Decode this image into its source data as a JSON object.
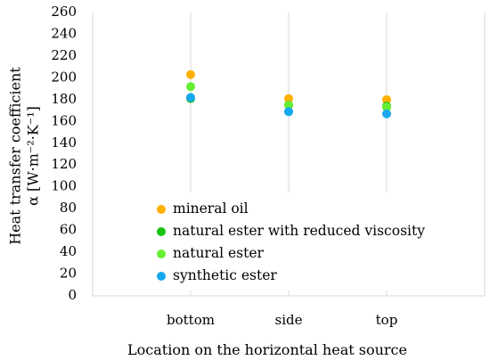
{
  "chart_data": {
    "type": "scatter",
    "categories": [
      "bottom",
      "side",
      "top"
    ],
    "xlabel": "Location on the horizontal heat source",
    "ylabel_line1": "Heat transfer coefficient",
    "ylabel_line2": "α [W·m⁻²·K⁻¹]",
    "ylim": [
      0,
      260
    ],
    "yticks": [
      0,
      20,
      40,
      60,
      80,
      100,
      120,
      140,
      160,
      180,
      200,
      220,
      240,
      260
    ],
    "grid": "vertical-lines",
    "legend_position": "bottom-center-inside",
    "series": [
      {
        "name": "mineral oil",
        "color": "#FFB000",
        "values": [
          203,
          181,
          180
        ]
      },
      {
        "name": "natural ester with reduced viscosity",
        "color": "#16C30F",
        "values": [
          181,
          175,
          174
        ]
      },
      {
        "name": "natural ester",
        "color": "#66EE33",
        "values": [
          192,
          175,
          173
        ]
      },
      {
        "name": "synthetic ester",
        "color": "#18A8F0",
        "values": [
          182,
          169,
          167
        ]
      }
    ]
  }
}
